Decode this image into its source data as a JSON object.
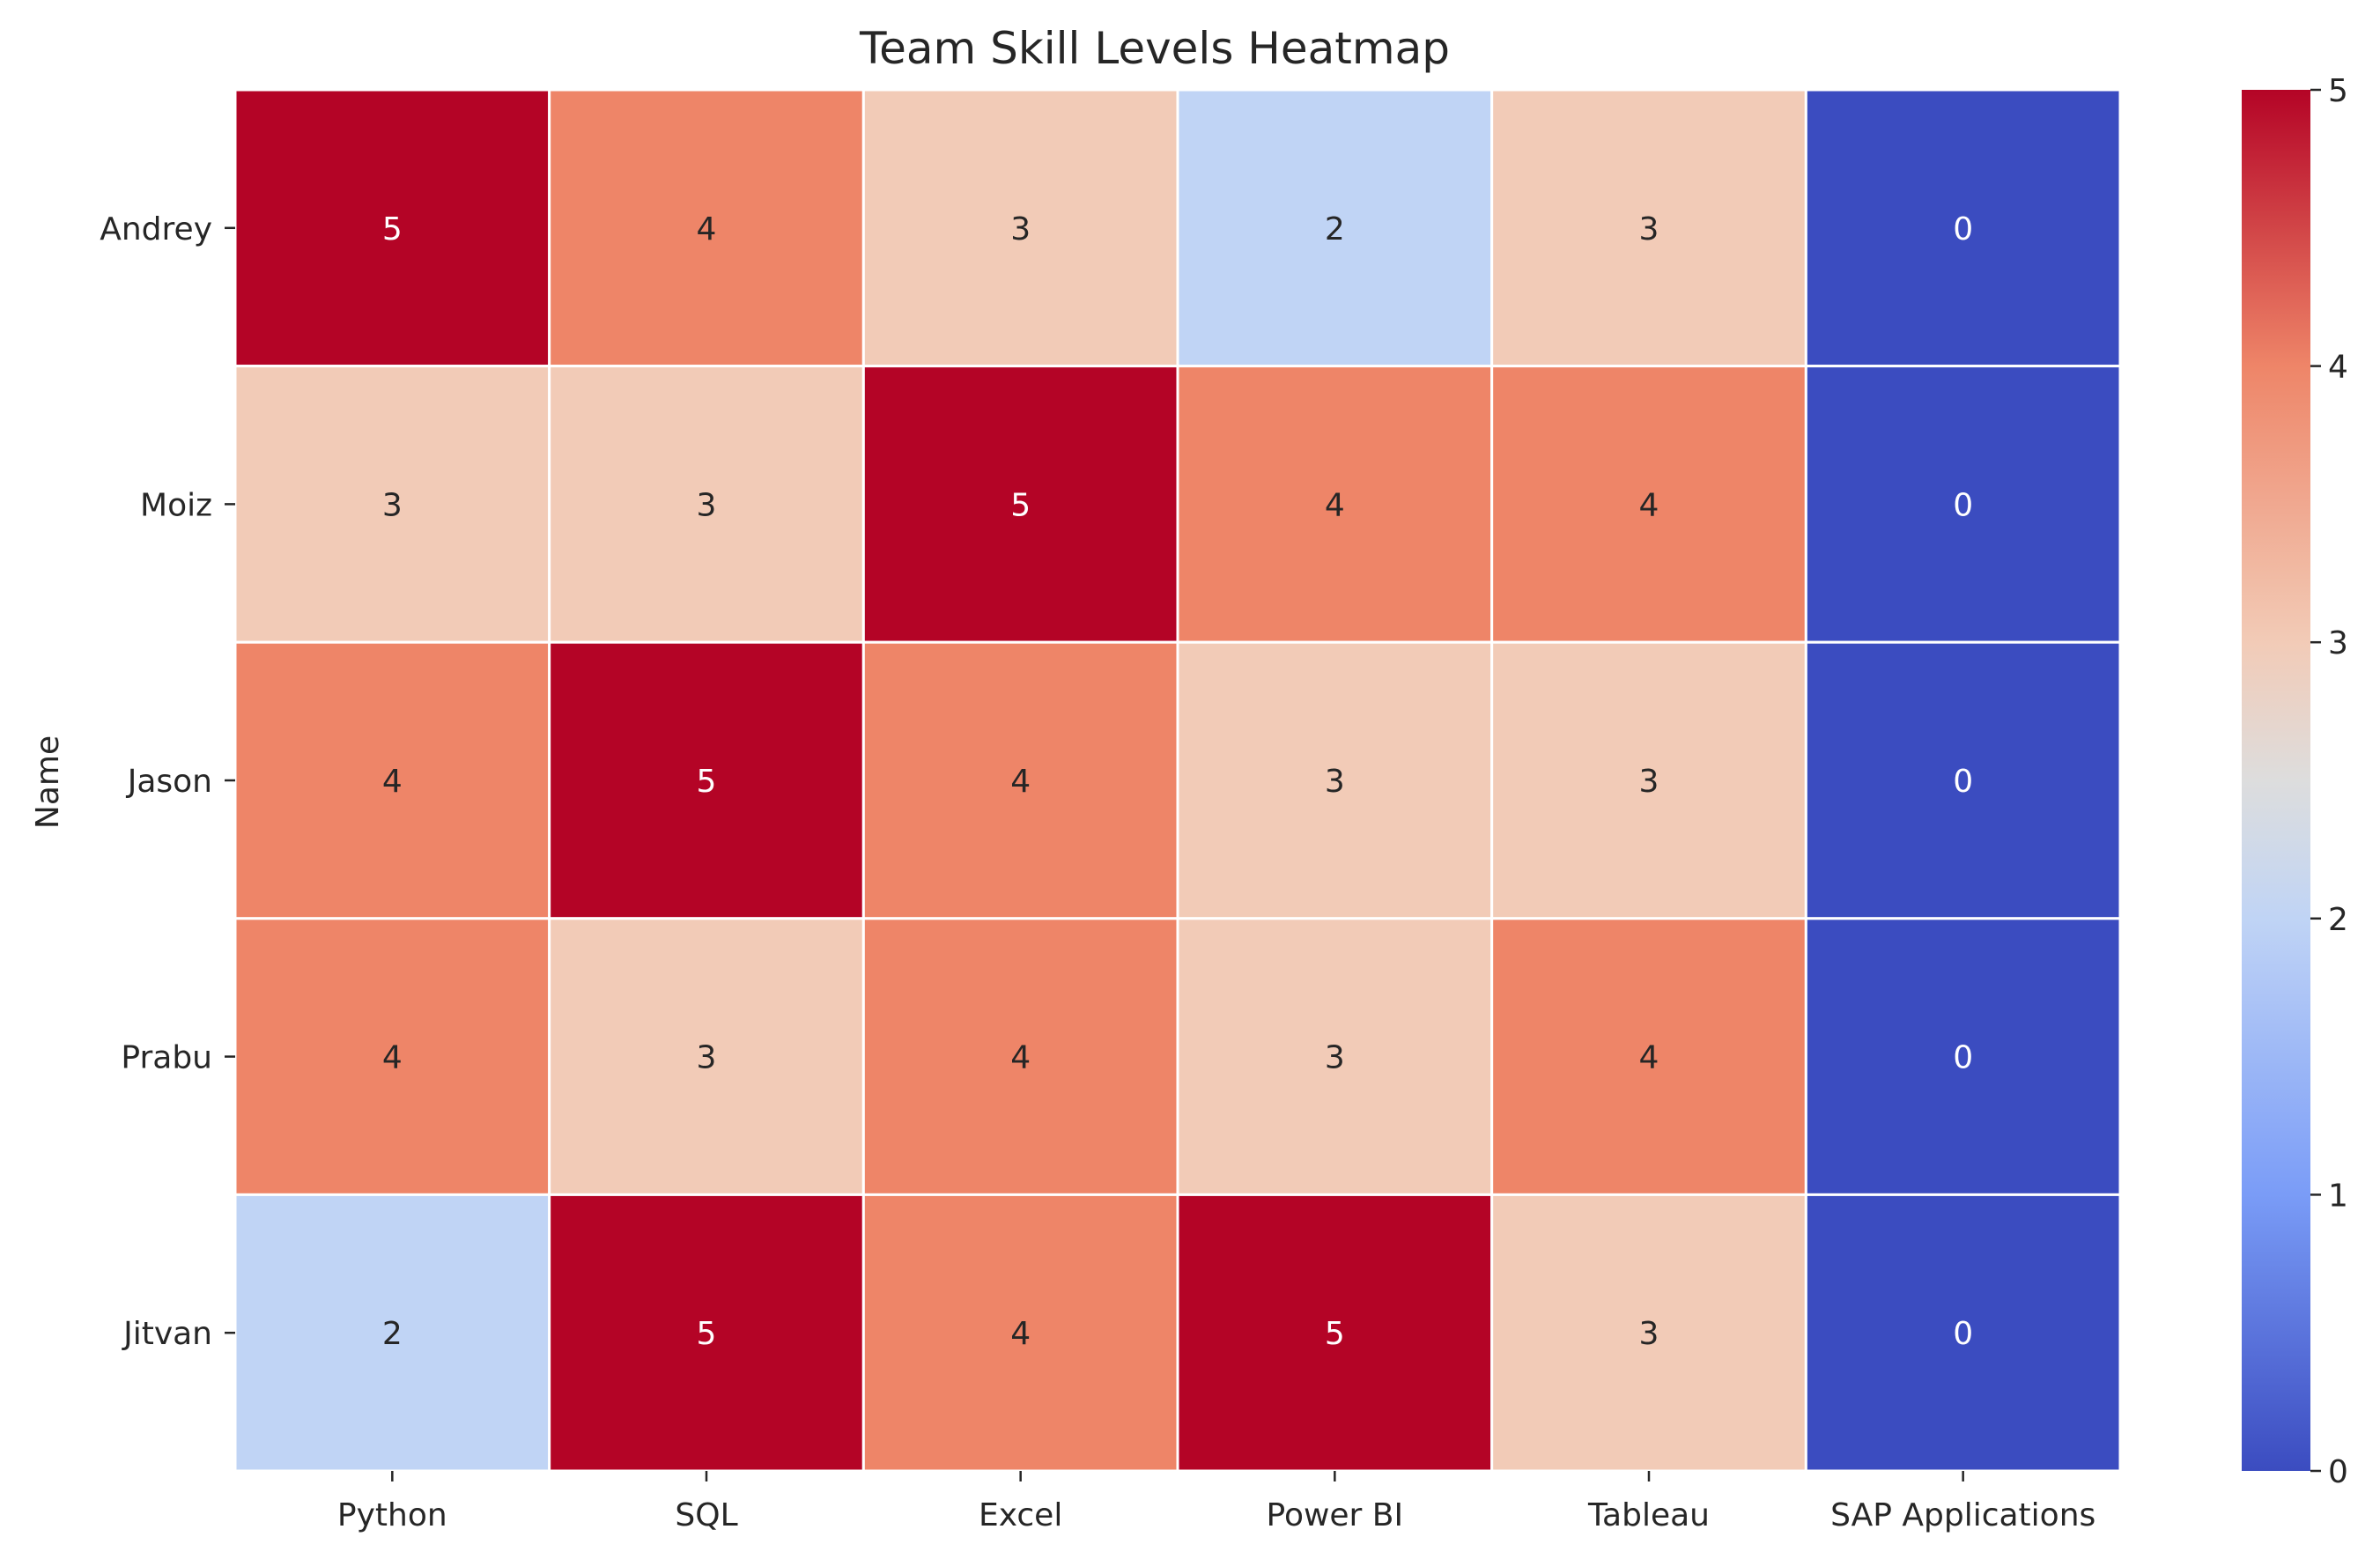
{
  "chart_data": {
    "type": "heatmap",
    "title": "Team Skill Levels Heatmap",
    "xlabel": "",
    "ylabel": "Name",
    "rows": [
      "Andrey",
      "Moiz",
      "Jason",
      "Prabu",
      "Jitvan"
    ],
    "columns": [
      "Python",
      "SQL",
      "Excel",
      "Power BI",
      "Tableau",
      "SAP Applications"
    ],
    "values": [
      [
        5,
        4,
        3,
        2,
        3,
        0
      ],
      [
        3,
        3,
        5,
        4,
        4,
        0
      ],
      [
        4,
        5,
        4,
        3,
        3,
        0
      ],
      [
        4,
        3,
        4,
        3,
        4,
        0
      ],
      [
        2,
        5,
        4,
        5,
        3,
        0
      ]
    ],
    "annotated": true,
    "colormap": "coolwarm",
    "colorbar": {
      "range": [
        0,
        5
      ],
      "ticks": [
        0,
        1,
        2,
        3,
        4,
        5
      ]
    }
  }
}
